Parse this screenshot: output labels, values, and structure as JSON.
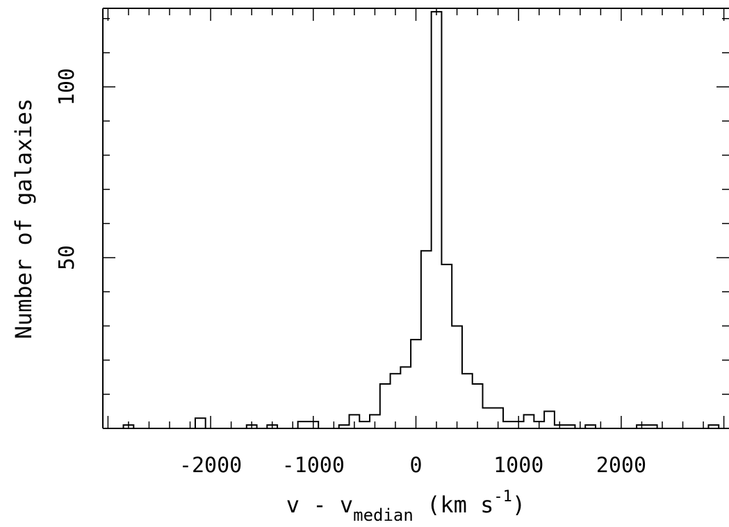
{
  "chart_data": {
    "type": "bar",
    "title": "",
    "xlabel": {
      "prefix": "v  -  v",
      "subscript": "median",
      "units_open": " (km s",
      "superscript": "-1",
      "units_close": ")"
    },
    "ylabel": "Number of galaxies",
    "xlim": [
      -3050,
      3050
    ],
    "ylim": [
      0,
      123
    ],
    "bin_width": 100,
    "bin_start": -3000,
    "x_ticks": [
      -2000,
      -1000,
      0,
      1000,
      2000
    ],
    "x_tick_labels": [
      "-2000",
      "-1000",
      "0",
      "1000",
      "2000"
    ],
    "y_ticks": [
      50,
      100
    ],
    "y_tick_labels": [
      "50",
      "100"
    ],
    "x_minor_step": 200,
    "y_minor_step": 10,
    "grid": false,
    "legend": "none",
    "counts": [
      0,
      0,
      1,
      0,
      0,
      0,
      0,
      0,
      0,
      3,
      0,
      0,
      0,
      0,
      1,
      0,
      1,
      0,
      0,
      2,
      2,
      0,
      0,
      1,
      4,
      2,
      4,
      13,
      16,
      18,
      26,
      52,
      122,
      48,
      30,
      16,
      13,
      6,
      6,
      2,
      2,
      4,
      2,
      5,
      1,
      1,
      0,
      1,
      0,
      0,
      0,
      0,
      1,
      1,
      0,
      0,
      0,
      0,
      0,
      1,
      0
    ],
    "line_color": "#000000"
  }
}
